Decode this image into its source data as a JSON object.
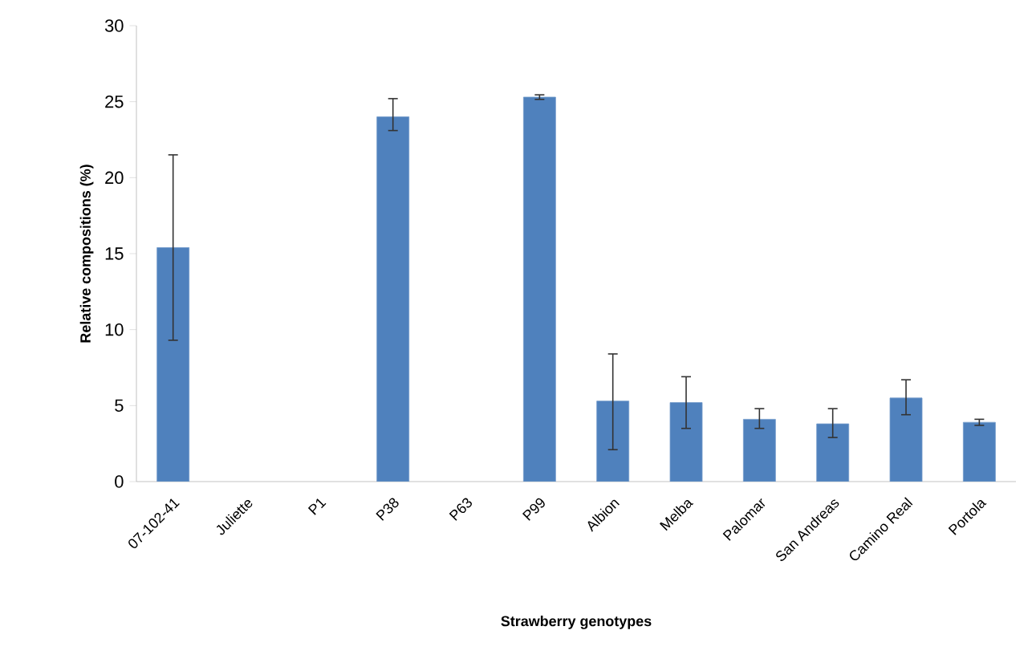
{
  "chart_data": {
    "type": "bar",
    "xlabel": "Strawberry genotypes",
    "ylabel": "Relative compositions (%)",
    "categories": [
      "07-102-41",
      "Juliette",
      "P1",
      "P38",
      "P63",
      "P99",
      "Albion",
      "Melba",
      "Palomar",
      "San Andreas",
      "Camino Real",
      "Portola"
    ],
    "values": [
      15.4,
      null,
      null,
      24.0,
      null,
      25.3,
      5.3,
      5.2,
      4.1,
      3.8,
      5.5,
      3.9
    ],
    "errors": [
      [
        9.3,
        21.5
      ],
      null,
      null,
      [
        23.1,
        25.2
      ],
      null,
      [
        25.15,
        25.45
      ],
      [
        2.1,
        8.4
      ],
      [
        3.5,
        6.9
      ],
      [
        3.5,
        4.8
      ],
      [
        2.9,
        4.8
      ],
      [
        4.4,
        6.7
      ],
      [
        3.7,
        4.1
      ]
    ],
    "color": "#4f81bd",
    "ylim": [
      0,
      30
    ],
    "yticks": [
      0,
      5,
      10,
      15,
      20,
      25,
      30
    ],
    "grid": false
  }
}
